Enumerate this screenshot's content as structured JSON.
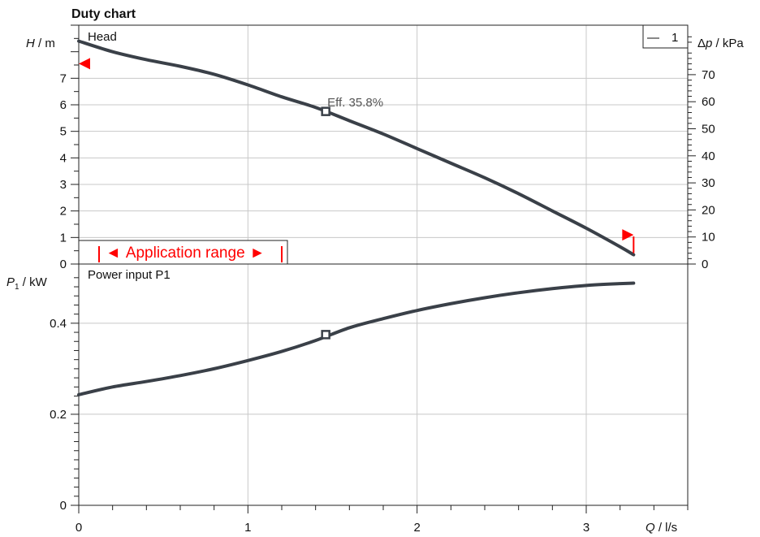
{
  "chart_data": {
    "title": "Duty chart",
    "type": "line",
    "x_axis": {
      "label_symbol": "Q",
      "label_unit": " / l/s",
      "range": [
        0,
        3.6
      ],
      "ticks": [
        0,
        1,
        2,
        3
      ],
      "tick_labels": [
        "0",
        "1",
        "2",
        "3"
      ]
    },
    "panels": [
      {
        "name": "Head",
        "ylabel_symbol": "H",
        "ylabel_unit": " / m",
        "ylim": [
          0,
          9
        ],
        "y_ticks": [
          0,
          1,
          2,
          3,
          4,
          5,
          6,
          7
        ],
        "y_tick_labels": [
          "0",
          "1",
          "2",
          "3",
          "4",
          "5",
          "6",
          "7"
        ],
        "secondary_axis": {
          "label_prefix": "Δ",
          "label_symbol": "p",
          "label_unit": " / kPa",
          "factor": 9.81,
          "ticks": [
            0,
            10,
            20,
            30,
            40,
            50,
            60,
            70
          ],
          "tick_labels": [
            "0",
            "10",
            "20",
            "30",
            "40",
            "50",
            "60",
            "70"
          ]
        },
        "series": [
          {
            "name": "1",
            "x": [
              0,
              0.2,
              0.4,
              0.6,
              0.8,
              1.0,
              1.2,
              1.4,
              1.6,
              1.8,
              2.0,
              2.2,
              2.4,
              2.6,
              2.8,
              3.0,
              3.2,
              3.28
            ],
            "y": [
              8.4,
              8.0,
              7.7,
              7.45,
              7.15,
              6.75,
              6.3,
              5.9,
              5.4,
              4.9,
              4.35,
              3.8,
              3.25,
              2.65,
              2.0,
              1.35,
              0.65,
              0.35
            ]
          }
        ],
        "duty_point": {
          "x": 1.46,
          "y": 5.75
        },
        "annotation": "Eff. 35.8%",
        "application_range": {
          "label": "Application range",
          "left_arrow": "◄",
          "right_arrow": "►",
          "q_min": 0.12,
          "q_max": 1.2
        },
        "max_head_marker_y": 7.55,
        "max_flow_marker": {
          "x": 3.28,
          "y": 1.1
        }
      },
      {
        "name": "Power input P1",
        "ylabel_symbol": "P",
        "ylabel_subscript": "1",
        "ylabel_unit": " / kW",
        "ylim": [
          0,
          0.53
        ],
        "y_ticks": [
          0,
          0.2,
          0.4
        ],
        "y_tick_labels": [
          "0",
          "0.2",
          "0.4"
        ],
        "series": [
          {
            "name": "1",
            "x": [
              0,
              0.2,
              0.4,
              0.6,
              0.8,
              1.0,
              1.2,
              1.4,
              1.6,
              1.8,
              2.0,
              2.2,
              2.4,
              2.6,
              2.8,
              3.0,
              3.2,
              3.28
            ],
            "y": [
              0.243,
              0.26,
              0.272,
              0.285,
              0.3,
              0.318,
              0.338,
              0.362,
              0.39,
              0.41,
              0.428,
              0.443,
              0.456,
              0.467,
              0.476,
              0.483,
              0.487,
              0.488
            ]
          }
        ],
        "duty_point": {
          "x": 1.46,
          "y": 0.375
        }
      }
    ],
    "legend": {
      "position": "top-right",
      "line_symbol": "—",
      "label": "1"
    },
    "grid": true
  },
  "colors": {
    "curve": "#3a4048",
    "grid": "#c8c8c8",
    "marker": "#ff0000"
  }
}
